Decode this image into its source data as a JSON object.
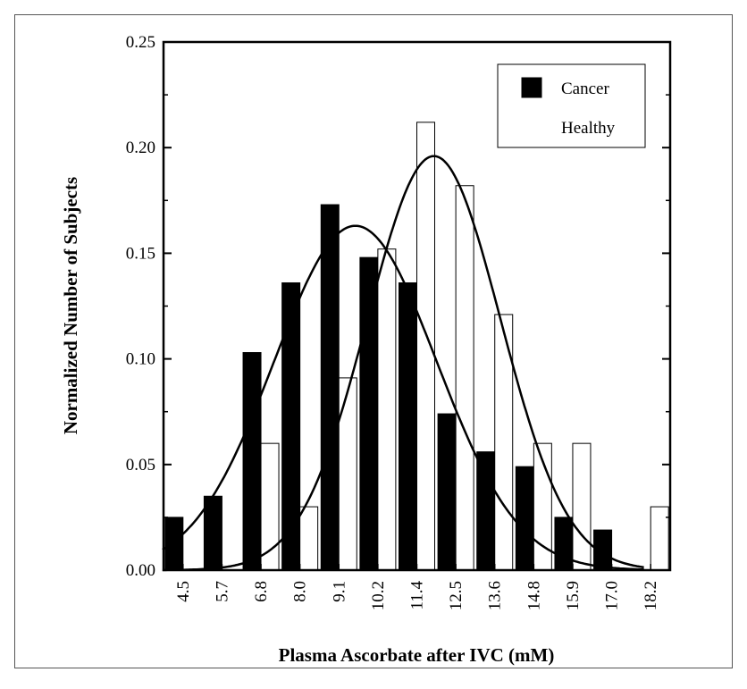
{
  "chart_data": {
    "type": "bar",
    "title": "",
    "xlabel": "Plasma Ascorbate after IVC (mM)",
    "ylabel": "Normalized Number of Subjects",
    "categories": [
      "4.5",
      "5.7",
      "6.8",
      "8.0",
      "9.1",
      "10.2",
      "11.4",
      "12.5",
      "13.6",
      "14.8",
      "15.9",
      "17.0",
      "18.2"
    ],
    "ylim": [
      0,
      0.25
    ],
    "yticks": [
      "0.00",
      "0.05",
      "0.10",
      "0.15",
      "0.20",
      "0.25"
    ],
    "series": [
      {
        "name": "Cancer",
        "fill": "#000000",
        "values": [
          0.025,
          0.035,
          0.103,
          0.136,
          0.173,
          0.148,
          0.136,
          0.074,
          0.056,
          0.049,
          0.025,
          0.019,
          0.0
        ]
      },
      {
        "name": "Healthy",
        "fill": "#ffffff",
        "values": [
          0.0,
          0.0,
          0.06,
          0.03,
          0.091,
          0.152,
          0.212,
          0.182,
          0.121,
          0.06,
          0.06,
          0.0,
          0.03
        ]
      }
    ],
    "fit_curves": [
      {
        "series": "Cancer",
        "mean": 9.55,
        "sd": 2.38,
        "peak": 0.163
      },
      {
        "series": "Healthy",
        "mean": 11.85,
        "sd": 1.95,
        "peak": 0.196
      }
    ],
    "legend_position": "top-right",
    "grid": false
  }
}
